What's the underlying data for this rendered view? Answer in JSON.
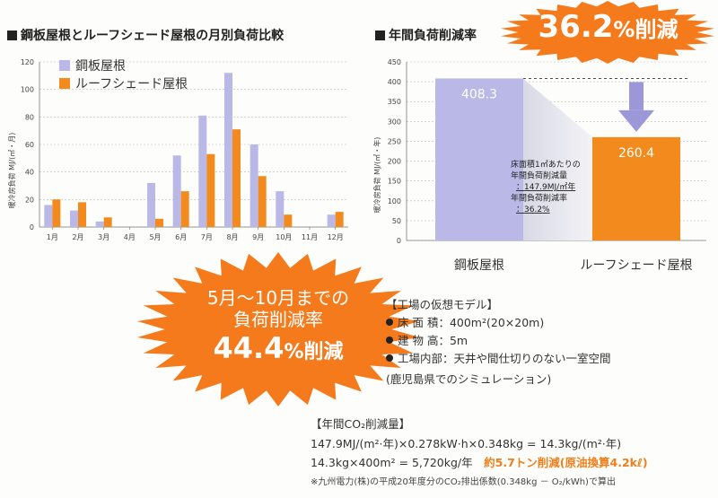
{
  "left_chart": {
    "heading": "鋼板屋根とルーフシェード屋根の月別負荷比較",
    "ylabel": "暖冷房負荷 MJ/(㎡・月)"
  },
  "right_chart": {
    "heading": "年間負荷削減率",
    "ylabel": "暖冷房負荷 MJ/(㎡・年)",
    "note_lines": [
      "床面積1㎡あたりの",
      "年間負荷削減量",
      "：147.9MJ/㎡年",
      "年間負荷削減率",
      "：36.2%"
    ]
  },
  "burst_top": {
    "value": "36.2",
    "unit": "%削減"
  },
  "burst_left": {
    "line1": "5月～10月までの",
    "line2": "負荷削減率",
    "value": "44.4",
    "unit": "%削減"
  },
  "model": {
    "title": "【工場の仮想モデル】",
    "items": [
      "床 面 積：400m²(20×20m)",
      "建 物 高：5m",
      "工場内部：天井や間仕切りのない一室空間"
    ],
    "note": "(鹿児島県でのシミュレーション)"
  },
  "co2": {
    "title": "【年間CO₂削減量】",
    "line1": "147.9MJ/(m²·年)×0.278kW·h×0.348kg = 14.3kg/(m²·年)",
    "line2": "14.3kg×400m² = 5,720kg/年",
    "line2_highlight": "約5.7トン削減(原油換算4.2kℓ)",
    "footnote": "※九州電力(株)の平成20年度分のCO₂排出係数(0.348kg － O₂/kWh)で算出"
  },
  "colors": {
    "steel": "#b9b8e6",
    "roofshade": "#f28a1e",
    "burst": "#f47a1c"
  },
  "chart_data": [
    {
      "type": "bar",
      "title": "鋼板屋根とルーフシェード屋根の月別負荷比較",
      "ylabel": "暖冷房負荷 MJ/(㎡・月)",
      "ylim": [
        0,
        120
      ],
      "yticks": [
        0,
        20,
        40,
        60,
        80,
        100,
        120
      ],
      "categories": [
        "1月",
        "2月",
        "3月",
        "4月",
        "5月",
        "6月",
        "7月",
        "8月",
        "9月",
        "10月",
        "11月",
        "12月"
      ],
      "series": [
        {
          "name": "鋼板屋根",
          "values": [
            16,
            12,
            4,
            0,
            32,
            52,
            81,
            112,
            60,
            26,
            0,
            9
          ]
        },
        {
          "name": "ルーフシェード屋根",
          "values": [
            20,
            18,
            7,
            0,
            6,
            26,
            53,
            71,
            37,
            9,
            0,
            11
          ]
        }
      ],
      "legend": "top-left"
    },
    {
      "type": "bar",
      "title": "年間負荷削減率",
      "ylabel": "暖冷房負荷 MJ/(㎡・年)",
      "ylim": [
        0,
        450
      ],
      "yticks": [
        0,
        50,
        100,
        150,
        200,
        250,
        300,
        350,
        400,
        450
      ],
      "categories": [
        "鋼板屋根",
        "ルーフシェード屋根"
      ],
      "values": [
        408.3,
        260.4
      ],
      "value_labels": [
        "408.3",
        "260.4"
      ]
    }
  ]
}
